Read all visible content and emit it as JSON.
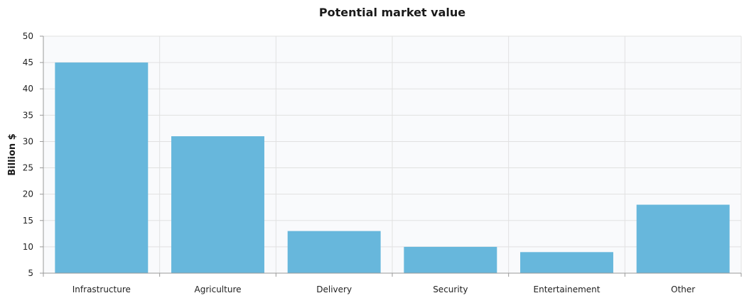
{
  "chart_data": {
    "type": "bar",
    "title": "Potential market value",
    "xlabel": "",
    "ylabel": "Billion $",
    "categories": [
      "Infrastructure",
      "Agriculture",
      "Delivery",
      "Security",
      "Entertainement",
      "Other"
    ],
    "values": [
      45,
      31,
      13,
      10,
      9,
      18
    ],
    "ylim": [
      5,
      50
    ],
    "yticks": [
      5,
      10,
      15,
      20,
      25,
      30,
      35,
      40,
      45,
      50
    ],
    "grid": true,
    "colors": {
      "bar": "#67b7dc",
      "plot_background": "#f9fafc",
      "grid": "#e1e1e1",
      "axis": "#999999"
    }
  }
}
